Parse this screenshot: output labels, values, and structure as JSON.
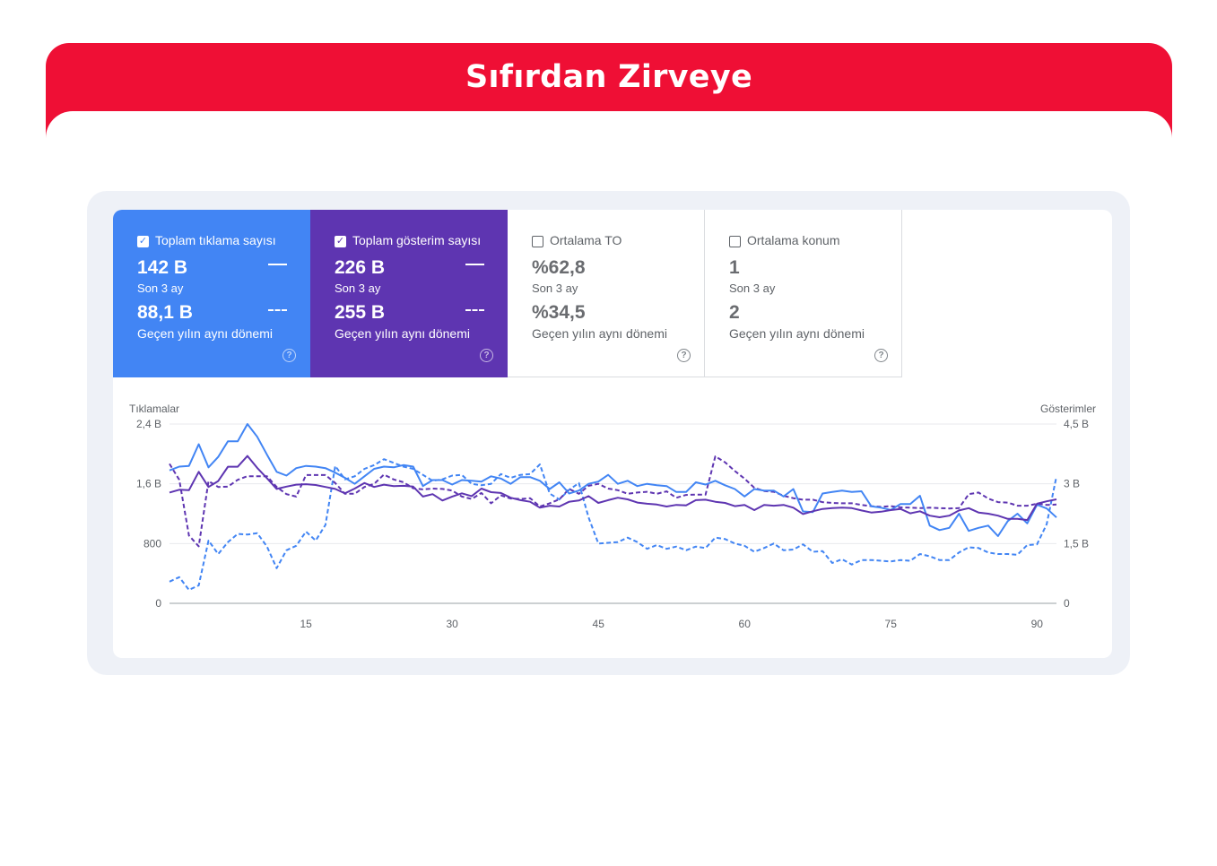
{
  "header": {
    "title": "Sıfırdan Zirveye"
  },
  "cards": [
    {
      "title": "Toplam tıklama sayısı",
      "checked": true,
      "value_current": "142 B",
      "label_current": "Son 3 ay",
      "value_previous": "88,1 B",
      "label_previous": "Geçen yılın aynı dönemi",
      "color": "#4285f4",
      "help_icon": "help-icon"
    },
    {
      "title": "Toplam gösterim sayısı",
      "checked": true,
      "value_current": "226 B",
      "label_current": "Son 3 ay",
      "value_previous": "255 B",
      "label_previous": "Geçen yılın aynı dönemi",
      "color": "#5e35b1",
      "help_icon": "help-icon"
    },
    {
      "title": "Ortalama TO",
      "checked": false,
      "value_current": "%62,8",
      "label_current": "Son 3 ay",
      "value_previous": "%34,5",
      "label_previous": "Geçen yılın aynı dönemi",
      "color": "#ffffff",
      "help_icon": "help-icon"
    },
    {
      "title": "Ortalama konum",
      "checked": false,
      "value_current": "1",
      "label_current": "Son 3 ay",
      "value_previous": "2",
      "label_previous": "Geçen yılın aynı dönemi",
      "color": "#ffffff",
      "help_icon": "help-icon"
    }
  ],
  "chart_data": {
    "type": "line",
    "ylabel_left": "Tıklamalar",
    "ylabel_right": "Gösterimler",
    "left_axis": {
      "range": [
        0,
        2400
      ],
      "ticks": [
        0,
        800,
        1600,
        2400
      ],
      "tick_labels": [
        "0",
        "800",
        "1,6 B",
        "2,4 B"
      ]
    },
    "right_axis": {
      "range": [
        0,
        4500
      ],
      "ticks": [
        0,
        1500,
        3000,
        4500
      ],
      "tick_labels": [
        "0",
        "1,5 B",
        "3 B",
        "4,5 B"
      ]
    },
    "x_range": [
      1,
      92
    ],
    "x_ticks": [
      15,
      30,
      45,
      60,
      75,
      90
    ],
    "x_tick_labels": [
      "15",
      "30",
      "45",
      "60",
      "75",
      "90"
    ],
    "series": [
      {
        "name": "Tıklamalar (Son 3 ay)",
        "axis": "left",
        "color": "#4285f4",
        "dash": false,
        "values": [
          1780,
          1830,
          1840,
          2130,
          1820,
          1960,
          2170,
          2170,
          2400,
          2230,
          1990,
          1760,
          1710,
          1810,
          1840,
          1830,
          1810,
          1750,
          1680,
          1600,
          1700,
          1800,
          1830,
          1820,
          1850,
          1830,
          1570,
          1650,
          1650,
          1590,
          1650,
          1640,
          1630,
          1700,
          1670,
          1600,
          1690,
          1690,
          1640,
          1530,
          1620,
          1470,
          1510,
          1600,
          1630,
          1720,
          1600,
          1640,
          1570,
          1600,
          1580,
          1570,
          1490,
          1490,
          1620,
          1590,
          1640,
          1580,
          1530,
          1430,
          1530,
          1510,
          1510,
          1430,
          1530,
          1230,
          1220,
          1470,
          1490,
          1510,
          1490,
          1500,
          1300,
          1280,
          1250,
          1330,
          1330,
          1440,
          1040,
          980,
          1010,
          1200,
          970,
          1010,
          1040,
          900,
          1100,
          1200,
          1070,
          1320,
          1270,
          1150
        ]
      },
      {
        "name": "Gösterimler (Son 3 ay)",
        "axis": "right",
        "color": "#5e35b1",
        "dash": false,
        "values": [
          2780,
          2850,
          2840,
          3300,
          2920,
          3070,
          3430,
          3430,
          3700,
          3400,
          3140,
          2870,
          2930,
          2980,
          2990,
          2970,
          2920,
          2870,
          2760,
          2880,
          3020,
          2920,
          2980,
          2940,
          2950,
          2930,
          2680,
          2740,
          2580,
          2680,
          2760,
          2690,
          2880,
          2790,
          2770,
          2650,
          2590,
          2550,
          2400,
          2450,
          2430,
          2550,
          2580,
          2690,
          2520,
          2590,
          2650,
          2610,
          2530,
          2500,
          2480,
          2430,
          2470,
          2460,
          2590,
          2600,
          2550,
          2520,
          2440,
          2470,
          2340,
          2470,
          2450,
          2470,
          2400,
          2240,
          2310,
          2370,
          2390,
          2400,
          2390,
          2330,
          2280,
          2300,
          2340,
          2370,
          2260,
          2310,
          2200,
          2160,
          2200,
          2330,
          2390,
          2280,
          2250,
          2200,
          2120,
          2120,
          2090,
          2500,
          2560,
          2610
        ]
      },
      {
        "name": "Tıklamalar (Geçen yıl)",
        "axis": "left",
        "color": "#4285f4",
        "dash": true,
        "values": [
          290,
          350,
          180,
          240,
          840,
          660,
          820,
          930,
          920,
          940,
          760,
          470,
          710,
          770,
          960,
          840,
          1050,
          1840,
          1660,
          1700,
          1800,
          1850,
          1930,
          1880,
          1830,
          1800,
          1720,
          1640,
          1660,
          1710,
          1720,
          1600,
          1580,
          1600,
          1730,
          1680,
          1720,
          1730,
          1860,
          1470,
          1390,
          1520,
          1610,
          1150,
          800,
          810,
          820,
          880,
          820,
          730,
          780,
          730,
          760,
          710,
          760,
          740,
          880,
          860,
          800,
          770,
          690,
          740,
          800,
          710,
          720,
          790,
          690,
          700,
          540,
          590,
          520,
          580,
          580,
          570,
          560,
          580,
          570,
          660,
          630,
          580,
          580,
          680,
          750,
          740,
          680,
          660,
          660,
          650,
          780,
          790,
          1060,
          1700
        ]
      },
      {
        "name": "Gösterimler (Geçen yıl)",
        "axis": "right",
        "color": "#5e35b1",
        "dash": true,
        "values": [
          3500,
          3100,
          1700,
          1430,
          3070,
          2920,
          2930,
          3100,
          3190,
          3190,
          3190,
          2920,
          2740,
          2680,
          3220,
          3220,
          3220,
          3020,
          2750,
          2750,
          2920,
          3000,
          3230,
          3110,
          3040,
          2890,
          2860,
          2880,
          2870,
          2830,
          2680,
          2620,
          2770,
          2510,
          2710,
          2630,
          2620,
          2640,
          2430,
          2510,
          2610,
          2870,
          2750,
          2950,
          3000,
          2880,
          2840,
          2750,
          2780,
          2800,
          2750,
          2810,
          2650,
          2720,
          2730,
          2730,
          3690,
          3540,
          3320,
          3130,
          2900,
          2820,
          2800,
          2700,
          2640,
          2600,
          2600,
          2540,
          2520,
          2510,
          2510,
          2470,
          2440,
          2420,
          2440,
          2410,
          2400,
          2390,
          2400,
          2390,
          2380,
          2390,
          2740,
          2780,
          2630,
          2540,
          2530,
          2450,
          2450,
          2500,
          2470,
          2480
        ]
      }
    ]
  }
}
